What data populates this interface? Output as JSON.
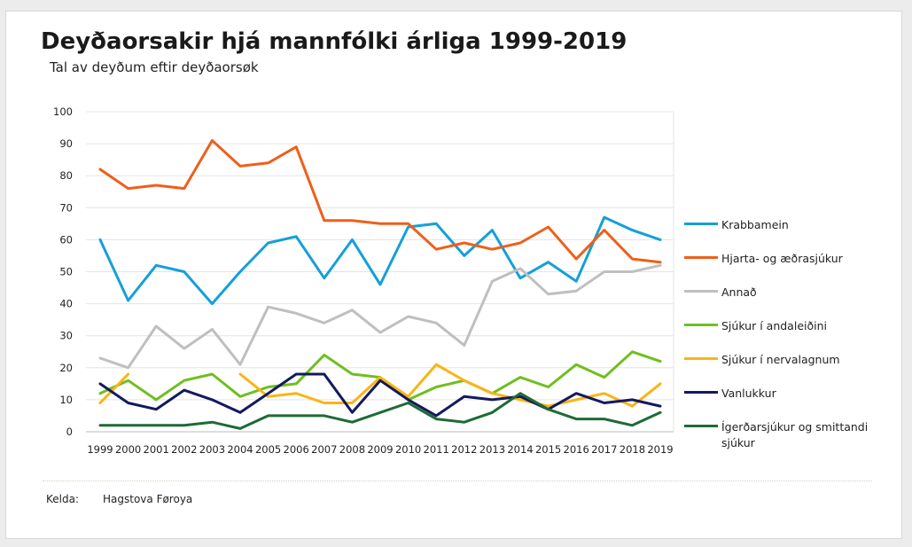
{
  "source_label": "Kelda:",
  "source_value": "Hagstova Føroya",
  "chart_data": {
    "type": "line",
    "title": "Deyðaorsakir hjá mannfólki árliga 1999-2019",
    "subtitle": "Tal av deyðum eftir deyðaorsøk",
    "xlabel": "",
    "ylabel": "",
    "ylim": [
      0,
      100
    ],
    "yticks": [
      0,
      10,
      20,
      30,
      40,
      50,
      60,
      70,
      80,
      90,
      100
    ],
    "grid": true,
    "legend_position": "right",
    "categories": [
      "1999",
      "2000",
      "2001",
      "2002",
      "2003",
      "2004",
      "2005",
      "2006",
      "2007",
      "2008",
      "2009",
      "2010",
      "2011",
      "2012",
      "2013",
      "2014",
      "2015",
      "2016",
      "2017",
      "2018",
      "2019"
    ],
    "series": [
      {
        "name": "Krabbamein",
        "color": "#13a0d8",
        "values": [
          60,
          41,
          52,
          50,
          40,
          50,
          59,
          61,
          48,
          60,
          46,
          64,
          65,
          55,
          63,
          48,
          53,
          47,
          67,
          63,
          60
        ]
      },
      {
        "name": "Hjarta- og æðrasjúkur",
        "color": "#ef5f1a",
        "values": [
          82,
          76,
          77,
          76,
          91,
          83,
          84,
          89,
          66,
          66,
          65,
          65,
          57,
          59,
          57,
          59,
          64,
          54,
          63,
          54,
          53
        ]
      },
      {
        "name": "Annað",
        "color": "#bfbfbf",
        "values": [
          23,
          20,
          33,
          26,
          32,
          21,
          39,
          37,
          34,
          38,
          31,
          36,
          34,
          27,
          47,
          51,
          43,
          44,
          50,
          50,
          52
        ]
      },
      {
        "name": "Sjúkur í andaleiðini",
        "color": "#6fbf1f",
        "values": [
          12,
          16,
          10,
          16,
          18,
          11,
          14,
          15,
          24,
          18,
          17,
          10,
          14,
          16,
          12,
          17,
          14,
          21,
          17,
          25,
          22
        ]
      },
      {
        "name": "Sjúkur í nervalagnum",
        "color": "#fbb416",
        "values": [
          9,
          18,
          null,
          null,
          null,
          18,
          11,
          12,
          9,
          9,
          17,
          11,
          21,
          16,
          12,
          10,
          8,
          10,
          12,
          8,
          15
        ]
      },
      {
        "name": "Vanlukkur",
        "color": "#131a5e",
        "values": [
          15,
          9,
          7,
          13,
          10,
          6,
          12,
          18,
          18,
          6,
          16,
          10,
          5,
          11,
          10,
          11,
          7,
          12,
          9,
          10,
          8
        ]
      },
      {
        "name": "Ígerðarsjúkur og smittandi sjúkur",
        "color": "#1e6b35",
        "values": [
          2,
          2,
          2,
          2,
          3,
          1,
          5,
          5,
          5,
          3,
          6,
          9,
          4,
          3,
          6,
          12,
          7,
          4,
          4,
          2,
          6
        ]
      }
    ]
  }
}
